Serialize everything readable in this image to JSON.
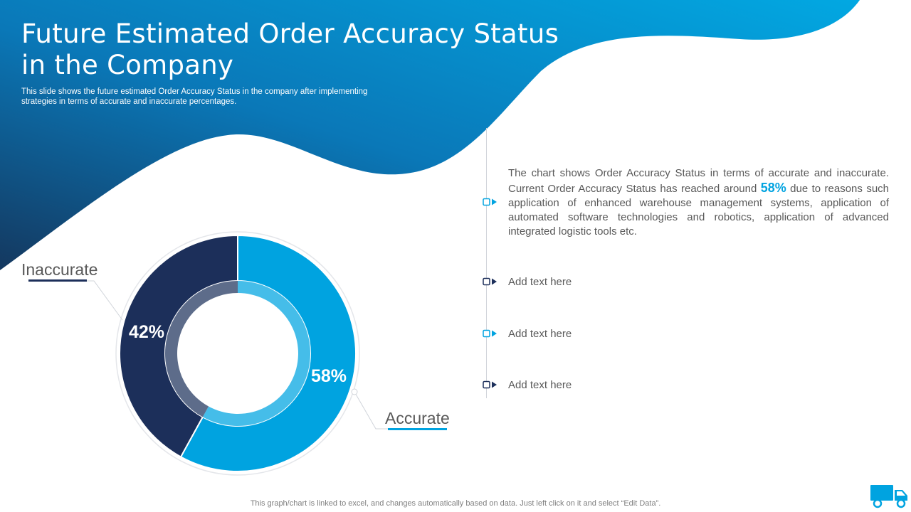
{
  "slide": {
    "title": "Future Estimated Order Accuracy Status in the Company",
    "subtitle": "This slide shows the future estimated Order Accuracy Status in the company after implementing strategies in terms of accurate and inaccurate percentages.",
    "footer": "This graph/chart is linked to excel, and changes automatically based on data. Just left click on it and select “Edit Data”."
  },
  "colors": {
    "dark_navy": "#1c2f5a",
    "bright_blue": "#00a3e0",
    "inner_accurate": "#45bde9",
    "inner_inaccurate": "#5d6c8a",
    "gradient_dark": "#14385f",
    "gradient_light": "#02a8e2"
  },
  "chart_data": {
    "type": "pie",
    "subtype": "doughnut",
    "categories": [
      "Accurate",
      "Inaccurate"
    ],
    "values": [
      58,
      42
    ],
    "data_labels": [
      "58%",
      "42%"
    ],
    "series": [
      {
        "values": [
          58,
          42
        ]
      }
    ]
  },
  "timeline": {
    "items": [
      {
        "text_before": "The chart shows Order Accuracy Status in terms of accurate and inaccurate. Current Order Accuracy Status has reached around ",
        "highlight": "58%",
        "text_after": " due to reasons such application of enhanced warehouse management systems, application of automated software technologies and robotics, application of advanced integrated logistic tools etc."
      },
      {
        "text": "Add text here"
      },
      {
        "text": "Add text here"
      },
      {
        "text": "Add text here"
      }
    ]
  },
  "icons": {
    "corner": "delivery-truck-icon"
  }
}
